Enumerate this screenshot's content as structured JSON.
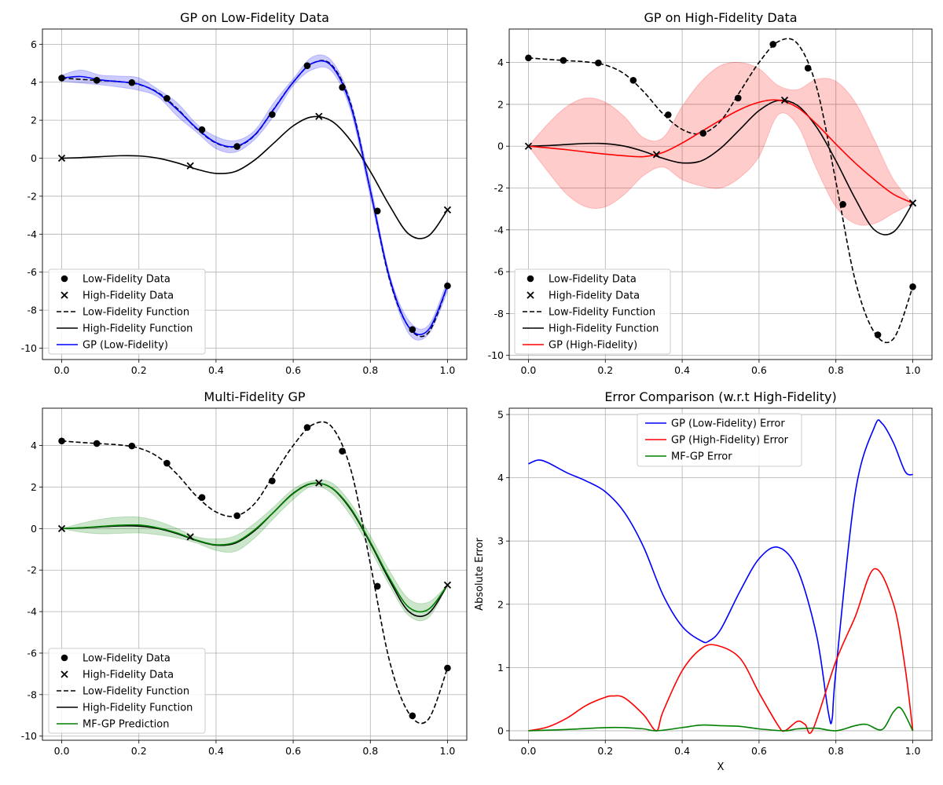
{
  "chart_data": [
    {
      "type": "line",
      "title": "GP on Low-Fidelity Data",
      "xlabel": "",
      "ylabel": "",
      "xlim": [
        -0.05,
        1.05
      ],
      "ylim": [
        -10.6,
        6.8
      ],
      "xticks": [
        "0.0",
        "0.2",
        "0.4",
        "0.6",
        "0.8",
        "1.0"
      ],
      "yticks": [
        "-10",
        "-8",
        "-6",
        "-4",
        "-2",
        "0",
        "2",
        "4",
        "6"
      ],
      "grid": true,
      "legend_position": "lower-left",
      "legend": [
        "Low-Fidelity Data",
        "High-Fidelity Data",
        "Low-Fidelity Function",
        "High-Fidelity Function",
        "GP (Low-Fidelity)"
      ],
      "series": [
        {
          "name": "Low-Fidelity Data",
          "kind": "points",
          "marker": "circle",
          "x": [
            0.0,
            0.0909,
            0.1818,
            0.2727,
            0.3636,
            0.4545,
            0.5455,
            0.6364,
            0.7273,
            0.8182,
            0.9091,
            1.0
          ],
          "y": [
            4.22,
            4.1,
            3.98,
            3.15,
            1.5,
            0.62,
            2.3,
            4.87,
            3.73,
            -2.78,
            -9.02,
            -6.72
          ]
        },
        {
          "name": "High-Fidelity Data",
          "kind": "points",
          "marker": "x",
          "x": [
            0.0,
            0.3333,
            0.6667,
            1.0
          ],
          "y": [
            0.0,
            -0.4,
            2.2,
            -2.72
          ]
        },
        {
          "name": "Low-Fidelity Function",
          "kind": "line",
          "dash": true,
          "x": [
            0.0,
            0.05,
            0.1,
            0.15,
            0.2,
            0.25,
            0.3,
            0.35,
            0.4,
            0.45,
            0.5,
            0.55,
            0.6,
            0.65,
            0.7,
            0.75,
            0.8,
            0.85,
            0.9,
            0.95,
            1.0
          ],
          "y": [
            4.22,
            4.15,
            4.09,
            4.03,
            3.88,
            3.45,
            2.6,
            1.55,
            0.8,
            0.6,
            1.2,
            2.6,
            4.0,
            5.0,
            4.9,
            2.8,
            -1.7,
            -6.4,
            -8.9,
            -9.2,
            -6.72
          ]
        },
        {
          "name": "High-Fidelity Function",
          "kind": "line",
          "x": [
            0.0,
            0.05,
            0.1,
            0.15,
            0.2,
            0.25,
            0.3,
            0.35,
            0.4,
            0.45,
            0.5,
            0.55,
            0.6,
            0.65,
            0.7,
            0.75,
            0.8,
            0.85,
            0.9,
            0.95,
            1.0
          ],
          "y": [
            0.0,
            0.03,
            0.08,
            0.13,
            0.12,
            0.0,
            -0.25,
            -0.58,
            -0.8,
            -0.7,
            -0.1,
            0.8,
            1.7,
            2.18,
            1.95,
            0.9,
            -0.7,
            -2.5,
            -4.0,
            -4.1,
            -2.72
          ]
        },
        {
          "name": "GP (Low-Fidelity)",
          "kind": "line",
          "band_halfwidth": 0.35,
          "x": [
            0.0,
            0.05,
            0.1,
            0.15,
            0.2,
            0.25,
            0.3,
            0.35,
            0.4,
            0.45,
            0.5,
            0.55,
            0.6,
            0.65,
            0.7,
            0.75,
            0.8,
            0.85,
            0.9,
            0.95,
            1.0
          ],
          "y": [
            4.22,
            4.3,
            4.12,
            4.03,
            3.9,
            3.42,
            2.55,
            1.58,
            0.82,
            0.62,
            1.22,
            2.58,
            4.0,
            5.0,
            4.85,
            2.7,
            -1.7,
            -6.3,
            -8.9,
            -9.05,
            -6.72
          ]
        }
      ]
    },
    {
      "type": "line",
      "title": "GP on High-Fidelity Data",
      "xlabel": "",
      "ylabel": "",
      "xlim": [
        -0.05,
        1.05
      ],
      "ylim": [
        -10.2,
        5.6
      ],
      "xticks": [
        "0.0",
        "0.2",
        "0.4",
        "0.6",
        "0.8",
        "1.0"
      ],
      "yticks": [
        "-10",
        "-8",
        "-6",
        "-4",
        "-2",
        "0",
        "2",
        "4"
      ],
      "grid": true,
      "legend_position": "lower-left",
      "legend": [
        "Low-Fidelity Data",
        "High-Fidelity Data",
        "Low-Fidelity Function",
        "High-Fidelity Function",
        "GP (High-Fidelity)"
      ],
      "series": [
        {
          "name": "Low-Fidelity Data",
          "kind": "points",
          "marker": "circle",
          "x": [
            0.0,
            0.0909,
            0.1818,
            0.2727,
            0.3636,
            0.4545,
            0.5455,
            0.6364,
            0.7273,
            0.8182,
            0.9091,
            1.0
          ],
          "y": [
            4.22,
            4.1,
            3.98,
            3.15,
            1.5,
            0.62,
            2.3,
            4.87,
            3.73,
            -2.78,
            -9.02,
            -6.72
          ]
        },
        {
          "name": "High-Fidelity Data",
          "kind": "points",
          "marker": "x",
          "x": [
            0.0,
            0.3333,
            0.6667,
            1.0
          ],
          "y": [
            0.0,
            -0.4,
            2.2,
            -2.72
          ]
        },
        {
          "name": "Low-Fidelity Function",
          "kind": "line",
          "dash": true,
          "x": [
            0.0,
            0.05,
            0.1,
            0.15,
            0.2,
            0.25,
            0.3,
            0.35,
            0.4,
            0.45,
            0.5,
            0.55,
            0.6,
            0.65,
            0.7,
            0.75,
            0.8,
            0.85,
            0.9,
            0.95,
            1.0
          ],
          "y": [
            4.22,
            4.15,
            4.09,
            4.03,
            3.88,
            3.45,
            2.6,
            1.55,
            0.8,
            0.6,
            1.2,
            2.6,
            4.0,
            5.0,
            4.9,
            2.8,
            -1.7,
            -6.4,
            -8.9,
            -9.2,
            -6.72
          ]
        },
        {
          "name": "High-Fidelity Function",
          "kind": "line",
          "x": [
            0.0,
            0.05,
            0.1,
            0.15,
            0.2,
            0.25,
            0.3,
            0.35,
            0.4,
            0.45,
            0.5,
            0.55,
            0.6,
            0.65,
            0.7,
            0.75,
            0.8,
            0.85,
            0.9,
            0.95,
            1.0
          ],
          "y": [
            0.0,
            0.03,
            0.08,
            0.13,
            0.12,
            0.0,
            -0.25,
            -0.58,
            -0.8,
            -0.7,
            -0.1,
            0.8,
            1.7,
            2.18,
            1.95,
            0.9,
            -0.7,
            -2.5,
            -4.0,
            -4.1,
            -2.72
          ]
        },
        {
          "name": "GP (High-Fidelity)",
          "kind": "line",
          "x": [
            0.0,
            0.05,
            0.1,
            0.15,
            0.2,
            0.25,
            0.3,
            0.35,
            0.4,
            0.45,
            0.5,
            0.55,
            0.6,
            0.65,
            0.7,
            0.75,
            0.8,
            0.85,
            0.9,
            0.95,
            1.0
          ],
          "y": [
            0.0,
            -0.08,
            -0.17,
            -0.28,
            -0.38,
            -0.46,
            -0.5,
            -0.3,
            0.15,
            0.7,
            1.25,
            1.75,
            2.1,
            2.2,
            1.85,
            1.05,
            0.1,
            -0.8,
            -1.6,
            -2.3,
            -2.72
          ],
          "band_upper": [
            0.0,
            1.05,
            1.9,
            2.3,
            2.1,
            1.4,
            0.4,
            0.4,
            1.9,
            3.1,
            3.85,
            4.0,
            3.7,
            2.9,
            2.7,
            3.2,
            3.1,
            2.1,
            0.3,
            -1.6,
            -2.72
          ],
          "band_lower": [
            0.0,
            -1.2,
            -2.3,
            -2.9,
            -2.9,
            -2.3,
            -1.4,
            -1.0,
            -1.6,
            -1.9,
            -2.0,
            -1.5,
            -0.5,
            1.5,
            1.0,
            -1.1,
            -2.9,
            -3.7,
            -3.7,
            -3.2,
            -2.72
          ]
        }
      ]
    },
    {
      "type": "line",
      "title": "Multi-Fidelity GP",
      "xlabel": "",
      "ylabel": "",
      "xlim": [
        -0.05,
        1.05
      ],
      "ylim": [
        -10.2,
        5.8
      ],
      "xticks": [
        "0.0",
        "0.2",
        "0.4",
        "0.6",
        "0.8",
        "1.0"
      ],
      "yticks": [
        "-10",
        "-8",
        "-6",
        "-4",
        "-2",
        "0",
        "2",
        "4"
      ],
      "grid": true,
      "legend_position": "lower-left",
      "legend": [
        "Low-Fidelity Data",
        "High-Fidelity Data",
        "Low-Fidelity Function",
        "High-Fidelity Function",
        "MF-GP Prediction"
      ],
      "series": [
        {
          "name": "Low-Fidelity Data",
          "kind": "points",
          "marker": "circle",
          "x": [
            0.0,
            0.0909,
            0.1818,
            0.2727,
            0.3636,
            0.4545,
            0.5455,
            0.6364,
            0.7273,
            0.8182,
            0.9091,
            1.0
          ],
          "y": [
            4.22,
            4.1,
            3.98,
            3.15,
            1.5,
            0.62,
            2.3,
            4.87,
            3.73,
            -2.78,
            -9.02,
            -6.72
          ]
        },
        {
          "name": "High-Fidelity Data",
          "kind": "points",
          "marker": "x",
          "x": [
            0.0,
            0.3333,
            0.6667,
            1.0
          ],
          "y": [
            0.0,
            -0.4,
            2.2,
            -2.72
          ]
        },
        {
          "name": "Low-Fidelity Function",
          "kind": "line",
          "dash": true,
          "x": [
            0.0,
            0.05,
            0.1,
            0.15,
            0.2,
            0.25,
            0.3,
            0.35,
            0.4,
            0.45,
            0.5,
            0.55,
            0.6,
            0.65,
            0.7,
            0.75,
            0.8,
            0.85,
            0.9,
            0.95,
            1.0
          ],
          "y": [
            4.22,
            4.15,
            4.09,
            4.03,
            3.88,
            3.45,
            2.6,
            1.55,
            0.8,
            0.6,
            1.2,
            2.6,
            4.0,
            5.0,
            4.9,
            2.8,
            -1.7,
            -6.4,
            -8.9,
            -9.2,
            -6.72
          ]
        },
        {
          "name": "High-Fidelity Function",
          "kind": "line",
          "x": [
            0.0,
            0.05,
            0.1,
            0.15,
            0.2,
            0.25,
            0.3,
            0.35,
            0.4,
            0.45,
            0.5,
            0.55,
            0.6,
            0.65,
            0.7,
            0.75,
            0.8,
            0.85,
            0.9,
            0.95,
            1.0
          ],
          "y": [
            0.0,
            0.03,
            0.08,
            0.13,
            0.12,
            0.0,
            -0.25,
            -0.58,
            -0.8,
            -0.7,
            -0.1,
            0.8,
            1.7,
            2.18,
            1.95,
            0.9,
            -0.7,
            -2.5,
            -4.0,
            -4.1,
            -2.72
          ]
        },
        {
          "name": "MF-GP Prediction",
          "kind": "line",
          "x": [
            0.0,
            0.05,
            0.1,
            0.15,
            0.2,
            0.25,
            0.3,
            0.35,
            0.4,
            0.45,
            0.5,
            0.55,
            0.6,
            0.65,
            0.7,
            0.75,
            0.8,
            0.85,
            0.9,
            0.95,
            1.0
          ],
          "y": [
            0.0,
            0.04,
            0.1,
            0.16,
            0.17,
            0.03,
            -0.22,
            -0.56,
            -0.78,
            -0.66,
            -0.06,
            0.8,
            1.68,
            2.17,
            1.96,
            0.95,
            -0.65,
            -2.4,
            -3.8,
            -3.9,
            -2.72
          ],
          "band_upper": [
            0.0,
            0.25,
            0.45,
            0.55,
            0.55,
            0.35,
            0.0,
            -0.4,
            -0.5,
            -0.35,
            0.25,
            1.05,
            1.9,
            2.3,
            2.2,
            1.2,
            -0.35,
            -2.05,
            -3.4,
            -3.55,
            -2.72
          ],
          "band_lower": [
            0.0,
            -0.17,
            -0.25,
            -0.23,
            -0.21,
            -0.3,
            -0.45,
            -0.7,
            -1.05,
            -1.1,
            -0.45,
            0.5,
            1.4,
            2.05,
            1.7,
            0.6,
            -1.0,
            -2.75,
            -4.2,
            -4.3,
            -2.72
          ]
        }
      ]
    },
    {
      "type": "line",
      "title": "Error Comparison (w.r.t High-Fidelity)",
      "xlabel": "X",
      "ylabel": "Absolute Error",
      "xlim": [
        -0.05,
        1.05
      ],
      "ylim": [
        -0.15,
        5.1
      ],
      "xticks": [
        "0.0",
        "0.2",
        "0.4",
        "0.6",
        "0.8",
        "1.0"
      ],
      "yticks": [
        "0",
        "1",
        "2",
        "3",
        "4",
        "5"
      ],
      "grid": true,
      "legend_position": "upper-center",
      "legend": [
        "GP (Low-Fidelity) Error",
        "GP (High-Fidelity) Error",
        "MF-GP Error"
      ],
      "series": [
        {
          "name": "GP (Low-Fidelity) Error",
          "kind": "line",
          "x": [
            0.0,
            0.025,
            0.05,
            0.1,
            0.15,
            0.2,
            0.25,
            0.3,
            0.35,
            0.4,
            0.45,
            0.47,
            0.5,
            0.55,
            0.6,
            0.65,
            0.7,
            0.75,
            0.78,
            0.79,
            0.8,
            0.85,
            0.9,
            0.92,
            0.95,
            0.98,
            1.0
          ],
          "y": [
            4.22,
            4.28,
            4.24,
            4.08,
            3.95,
            3.78,
            3.45,
            2.9,
            2.15,
            1.65,
            1.42,
            1.42,
            1.6,
            2.2,
            2.72,
            2.9,
            2.55,
            1.5,
            0.3,
            0.18,
            0.95,
            3.75,
            4.8,
            4.86,
            4.55,
            4.1,
            4.05
          ]
        },
        {
          "name": "GP (High-Fidelity) Error",
          "kind": "line",
          "x": [
            0.0,
            0.05,
            0.1,
            0.15,
            0.2,
            0.22,
            0.25,
            0.3,
            0.333,
            0.35,
            0.4,
            0.45,
            0.49,
            0.55,
            0.6,
            0.65,
            0.667,
            0.7,
            0.72,
            0.74,
            0.8,
            0.85,
            0.9,
            0.95,
            0.98,
            1.0
          ],
          "y": [
            0.0,
            0.06,
            0.2,
            0.4,
            0.53,
            0.55,
            0.52,
            0.25,
            0.0,
            0.3,
            0.95,
            1.3,
            1.35,
            1.15,
            0.6,
            0.08,
            0.0,
            0.15,
            0.1,
            0.02,
            1.1,
            1.8,
            2.56,
            2.0,
            1.0,
            0.0
          ]
        },
        {
          "name": "MF-GP Error",
          "kind": "line",
          "x": [
            0.0,
            0.1,
            0.2,
            0.25,
            0.3,
            0.333,
            0.4,
            0.45,
            0.5,
            0.55,
            0.6,
            0.667,
            0.7,
            0.75,
            0.8,
            0.85,
            0.88,
            0.92,
            0.95,
            0.97,
            1.0
          ],
          "y": [
            0.0,
            0.02,
            0.05,
            0.05,
            0.03,
            0.0,
            0.05,
            0.09,
            0.08,
            0.07,
            0.03,
            0.0,
            0.03,
            0.04,
            0.0,
            0.08,
            0.1,
            0.02,
            0.3,
            0.35,
            0.0
          ]
        }
      ]
    }
  ],
  "colors": {
    "data_points": "#000000",
    "lf_function": "#000000",
    "hf_function": "#000000",
    "gp_low": "#0000ff",
    "gp_high": "#ff0000",
    "mfgp": "#008000",
    "grid": "#b0b0b0"
  }
}
